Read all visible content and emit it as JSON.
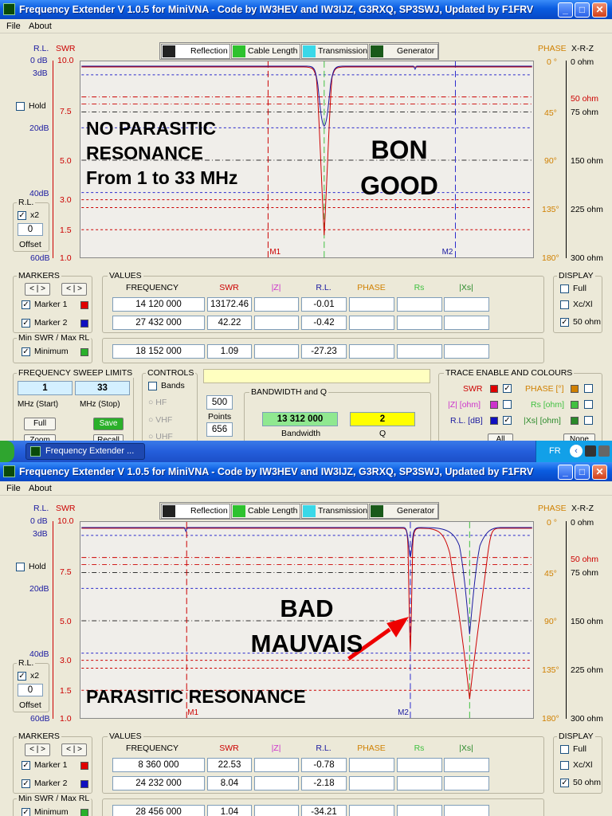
{
  "window_title": "Frequency Extender V 1.0.5  for MiniVNA  - Code by IW3HEV and IW3IJZ, G3RXQ, SP3SWJ, Updated by F1FRV",
  "menu": [
    "File",
    "About"
  ],
  "tabs": [
    "Reflection",
    "Cable Length",
    "Transmission",
    "Generator"
  ],
  "left_axis": {
    "header_rl": "R.L.",
    "header_swr": "SWR",
    "rl_ticks": [
      "0 dB",
      "3dB",
      "20dB",
      "40dB",
      "60dB"
    ],
    "swr_ticks": [
      "10.0",
      "7.5",
      "5.0",
      "3.0",
      "1.5",
      "1.0"
    ]
  },
  "right_axis": {
    "header_phase": "PHASE",
    "header_xrz": "X-R-Z",
    "phase_ticks": [
      "0 °",
      "45°",
      "90°",
      "135°",
      "180°"
    ],
    "ohm_ticks": [
      "0 ohm",
      "50 ohm",
      "75 ohm",
      "150 ohm",
      "225 ohm",
      "300 ohm"
    ]
  },
  "hold_label": "Hold",
  "rl_group_label": "R.L.",
  "x2_label": "x2",
  "offset_value": "0",
  "offset_label": "Offset",
  "markers_title": "MARKERS",
  "marker_buttons": [
    "<",
    ">",
    "<",
    ">"
  ],
  "marker1_label": "Marker 1",
  "marker2_label": "Marker 2",
  "minmax_title": "Min SWR / Max RL",
  "minimum_label": "Minimum",
  "values_title": "VALUES",
  "col_headers": [
    "FREQUENCY",
    "SWR",
    "|Z|",
    "R.L.",
    "PHASE",
    "Rs",
    "|Xs|"
  ],
  "display": {
    "title": "DISPLAY",
    "full": "Full",
    "xcxl": "Xc/Xl",
    "ohm50": "50 ohm"
  },
  "colors": {
    "swr": "#cc0000",
    "rl": "#1a1aa0",
    "phase": "#d08000",
    "rs": "#40c040",
    "xs": "#2a8a2a",
    "z": "#cc33cc",
    "accent": "#0a5ce0"
  },
  "screen1": {
    "overlay": [
      "NO PARASITIC",
      "RESONANCE",
      "From 1 to 33 MHz"
    ],
    "overlay2": [
      "BON",
      "GOOD"
    ],
    "marker_tags": [
      "M1",
      "M2"
    ],
    "marker1": {
      "freq": "14 120 000",
      "swr": "13172.46",
      "rl": "-0.01"
    },
    "marker2": {
      "freq": "27 432 000",
      "swr": "42.22",
      "rl": "-0.42"
    },
    "minimum": {
      "freq": "18 152 000",
      "swr": "1.09",
      "rl": "-27.23"
    },
    "sweep": {
      "title": "FREQUENCY SWEEP LIMITS",
      "start": "1",
      "stop": "33",
      "start_label": "MHz (Start)",
      "stop_label": "MHz (Stop)",
      "full_btn": "Full",
      "save_btn": "Save",
      "zoom_btn": "Zoom",
      "recall_btn": "Recall"
    },
    "controls": {
      "title": "CONTROLS",
      "bands": "Bands",
      "hf": "HF",
      "vhf": "VHF",
      "uhf": "UHF"
    },
    "points": {
      "value": "500",
      "label": "Points",
      "steps": "656"
    },
    "bandwidth": {
      "title": "BANDWIDTH and Q",
      "value": "13 312 000",
      "q": "2",
      "bw_label": "Bandwidth",
      "q_label": "Q"
    },
    "trace": {
      "title": "TRACE ENABLE AND COLOURS",
      "swr": "SWR",
      "z": "|Z| [ohm]",
      "rl": "R.L. [dB]",
      "phase": "PHASE [°]",
      "rs": "Rs [ohm]",
      "xs": "|Xs| [ohm]",
      "all_btn": "All",
      "none_btn": "None"
    }
  },
  "taskbar": {
    "button": "Frequency Extender ...",
    "lang": "FR"
  },
  "screen2": {
    "overlay": [
      "BAD",
      "MAUVAIS"
    ],
    "parasitic_label": "PARASITIC RESONANCE",
    "marker_tags": [
      "M1",
      "M2"
    ],
    "marker1": {
      "freq": "8 360 000",
      "swr": "22.53",
      "rl": "-0.78"
    },
    "marker2": {
      "freq": "24 232 000",
      "swr": "8.04",
      "rl": "-2.18"
    },
    "minimum": {
      "freq": "28 456 000",
      "swr": "1.04",
      "rl": "-34.21"
    }
  }
}
